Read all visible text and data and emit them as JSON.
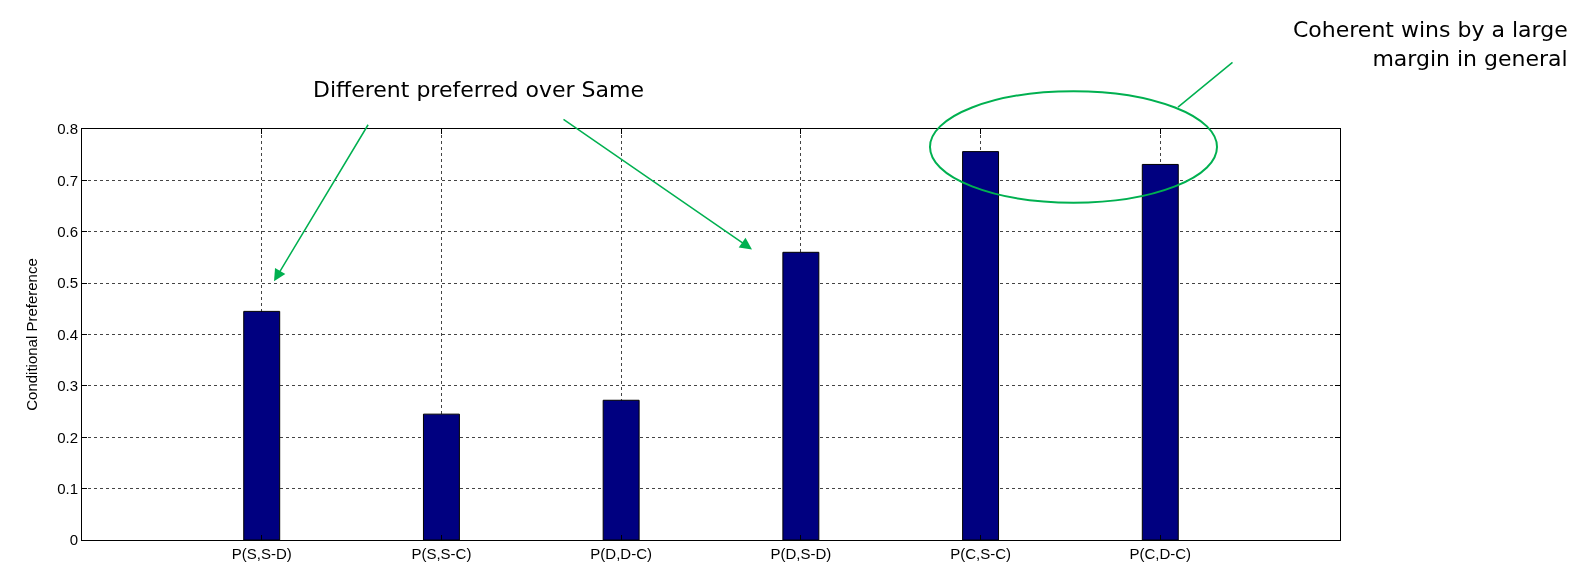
{
  "chart_data": {
    "type": "bar",
    "ylabel": "Conditional Preference",
    "categories": [
      "P(S,S-D)",
      "P(S,S-C)",
      "P(D,D-C)",
      "P(D,S-D)",
      "P(C,S-C)",
      "P(C,D-C)"
    ],
    "values": [
      0.445,
      0.245,
      0.272,
      0.56,
      0.756,
      0.731
    ],
    "color": "#000080",
    "ylim": [
      0,
      0.8
    ],
    "yticks": [
      0,
      0.1,
      0.2,
      0.3,
      0.4,
      0.5,
      0.6,
      0.7,
      0.8
    ],
    "grid": true,
    "annotations": [
      "Different preferred over Same",
      "Coherent wins by a large\nmargin in general"
    ]
  }
}
